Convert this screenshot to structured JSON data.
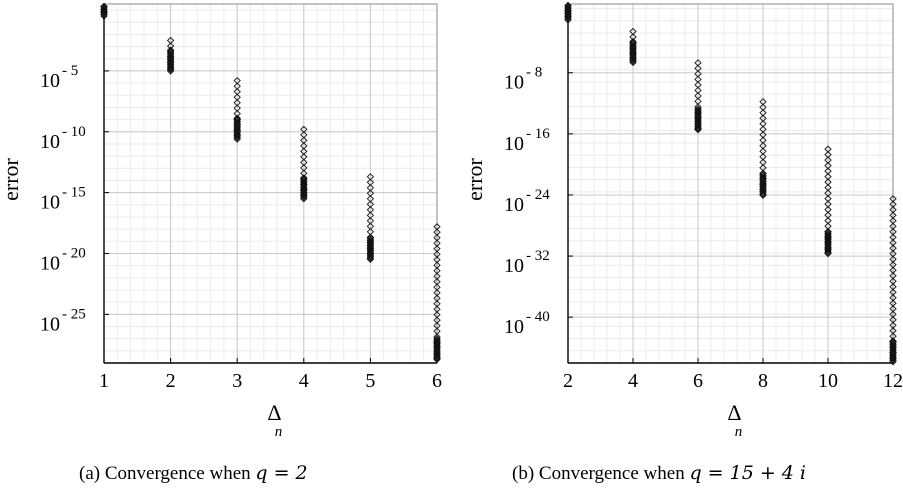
{
  "chart_data": [
    {
      "type": "scatter",
      "panel": "a",
      "caption_label": "(a)",
      "caption_text": "Convergence when",
      "caption_math": "q = 2",
      "xlabel": "Δ",
      "xlabel_sub": "n",
      "ylabel": "error",
      "log_y": true,
      "grid": true,
      "xlim": [
        1,
        6
      ],
      "ylim_exp": [
        -29,
        0.5
      ],
      "x_ticks": [
        1,
        2,
        3,
        4,
        5,
        6
      ],
      "y_tick_exps": [
        -5,
        -10,
        -15,
        -20,
        -25
      ],
      "series": [
        {
          "x": 1,
          "log10_max": 0.3,
          "log10_min": -0.6
        },
        {
          "x": 2,
          "log10_max": -2.5,
          "log10_min": -5.1
        },
        {
          "x": 3,
          "log10_max": -5.8,
          "log10_min": -10.7
        },
        {
          "x": 4,
          "log10_max": -9.8,
          "log10_min": -15.6
        },
        {
          "x": 5,
          "log10_max": -13.7,
          "log10_min": -20.5
        },
        {
          "x": 6,
          "log10_max": -17.8,
          "log10_min": -28.8
        }
      ]
    },
    {
      "type": "scatter",
      "panel": "b",
      "caption_label": "(b)",
      "caption_text": "Convergence when",
      "caption_math": "q = 15 + 4 i",
      "xlabel": "Δ",
      "xlabel_sub": "n",
      "ylabel": "error",
      "log_y": true,
      "grid": true,
      "xlim": [
        2,
        12
      ],
      "ylim_exp": [
        -46,
        1
      ],
      "x_ticks": [
        2,
        4,
        6,
        8,
        10,
        12
      ],
      "y_tick_exps": [
        -8,
        -16,
        -24,
        -32,
        -40
      ],
      "series": [
        {
          "x": 2,
          "log10_max": 0.8,
          "log10_min": -1.2
        },
        {
          "x": 4,
          "log10_max": -2.6,
          "log10_min": -6.8
        },
        {
          "x": 6,
          "log10_max": -6.7,
          "log10_min": -15.6
        },
        {
          "x": 8,
          "log10_max": -11.8,
          "log10_min": -24.1
        },
        {
          "x": 10,
          "log10_max": -18.0,
          "log10_min": -31.7
        },
        {
          "x": 12,
          "log10_max": -24.5,
          "log10_min": -46.0
        }
      ]
    }
  ]
}
